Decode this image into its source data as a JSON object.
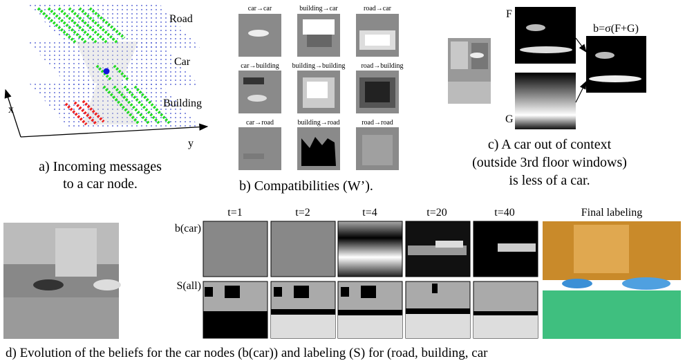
{
  "panel_a": {
    "planes": [
      "Road",
      "Car",
      "Building"
    ],
    "axes": [
      "x",
      "y"
    ],
    "caption": [
      "a) Incoming messages",
      "to a car node."
    ]
  },
  "panel_b": {
    "labels": [
      "car→car",
      "building→car",
      "road→car",
      "car→building",
      "building→building",
      "road→building",
      "car→road",
      "building→road",
      "road→road"
    ],
    "caption": "b) Compatibilities (W’)."
  },
  "panel_c": {
    "f": "F",
    "g": "G",
    "result": "b=σ(F+G)",
    "caption": [
      "c) A car out of context",
      "(outside 3rd floor windows)",
      "is less of a car."
    ]
  },
  "panel_d": {
    "rows": [
      "b(car)",
      "S(all)"
    ],
    "steps": [
      "t=1",
      "t=2",
      "t=4",
      "t=20",
      "t=40"
    ],
    "final": "Final labeling",
    "caption": "d) Evolution of the beliefs for the car nodes (b(car)) and labeling (S) for (road, building, car"
  }
}
